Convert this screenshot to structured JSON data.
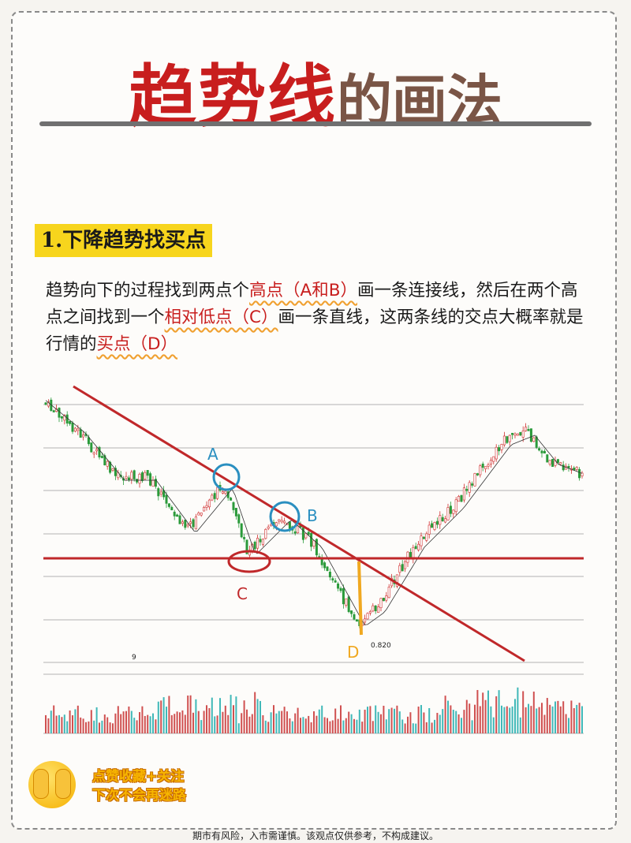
{
  "title": {
    "part1": "趋势线",
    "part2": "的画法"
  },
  "section": {
    "heading": "1.下降趋势找买点"
  },
  "paragraph": {
    "s1": "趋势向下的过程找到两点个",
    "h1": "高点（A和B）",
    "s2": "画一条连接线，然后在两个高点之间找到一个",
    "h2": "相对低点（C）",
    "s3": "画一条直线，这两条线的交点大概率就是行情的",
    "h3": "买点（D）"
  },
  "chart": {
    "labels": {
      "a": "A",
      "b": "B",
      "c": "C",
      "d": "D",
      "low_value": "0.820",
      "misc": "9"
    },
    "colors": {
      "trendline": "#c0282a",
      "circle": "#2a8fc0",
      "candle_up": "#d03030",
      "candle_down": "#2a9a3a",
      "volume": "#d05050",
      "volume_alt": "#40b8b8",
      "d_marker": "#f0a820"
    }
  },
  "footer": {
    "cta_line1": "点赞收藏+关注",
    "cta_line2": "下次不会再迷路",
    "disclaimer": "期市有风险，入市需谨慎。该观点仅供参考，不构成建议。"
  }
}
